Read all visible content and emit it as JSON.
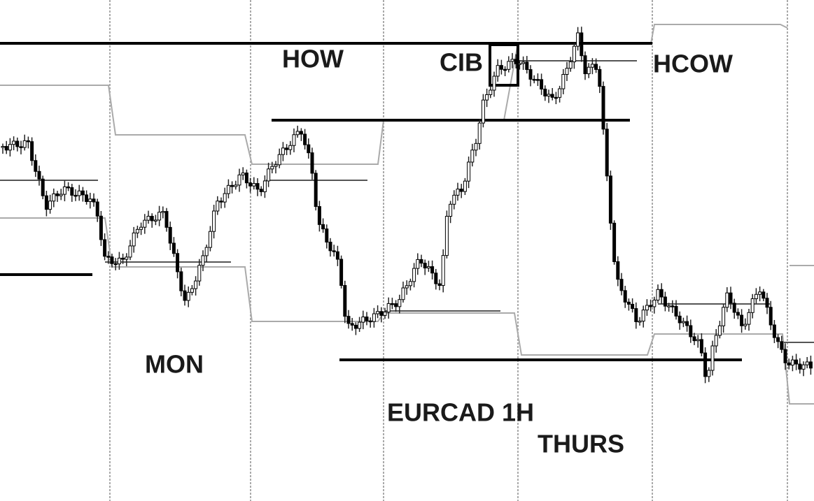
{
  "annotations": {
    "how": "HOW",
    "cib": "CIB",
    "hcow": "HCOW",
    "mon": "MON",
    "symbol": "EURCAD 1H",
    "thurs": "THURS"
  }
}
